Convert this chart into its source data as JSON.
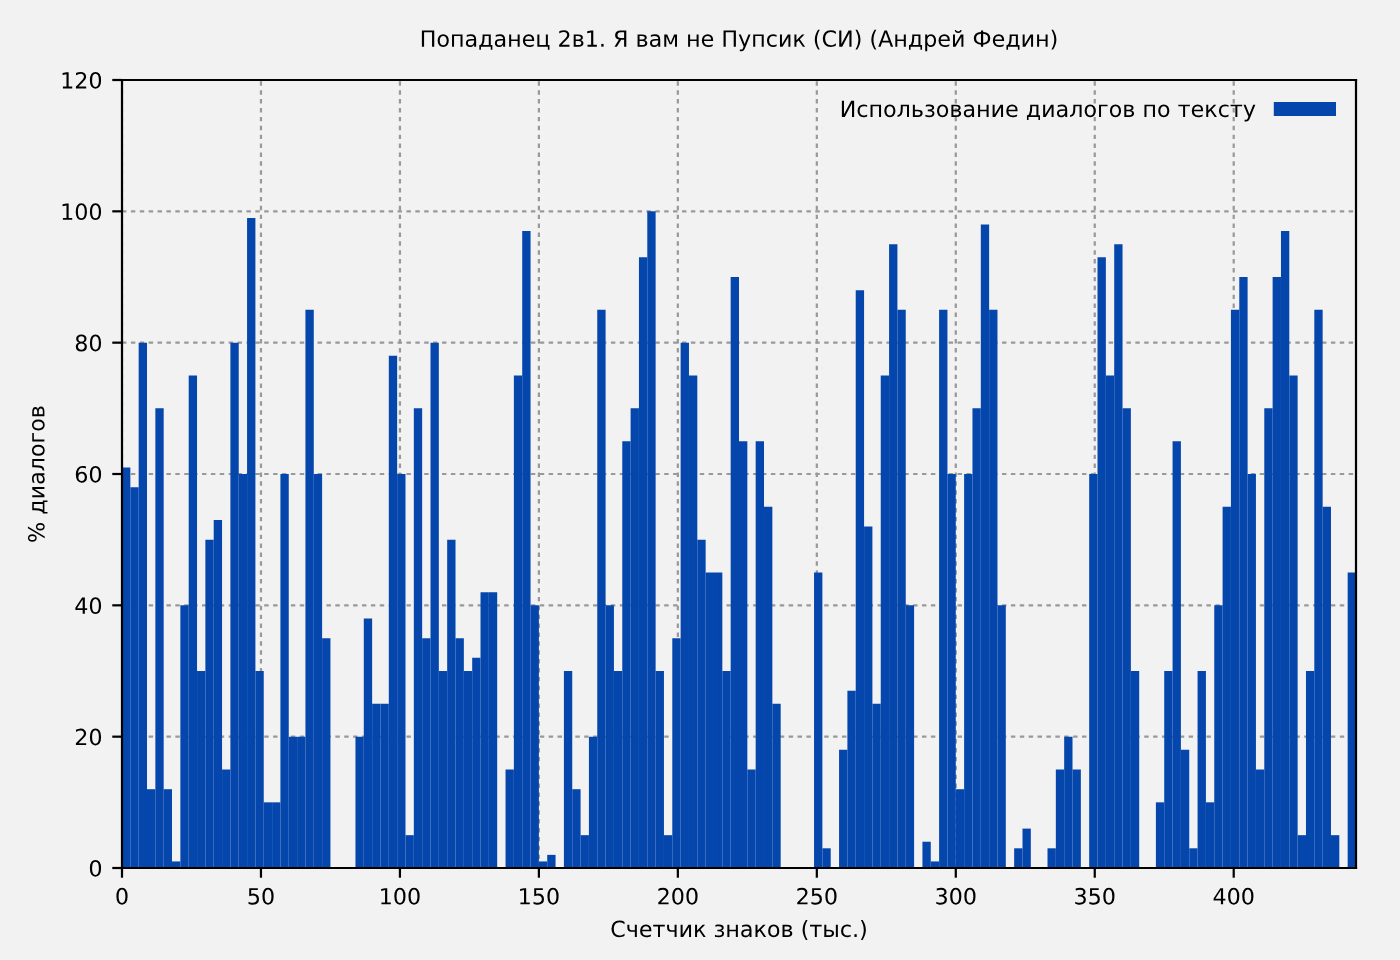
{
  "chart_data": {
    "type": "bar",
    "title": "Попаданец 2в1. Я вам не Пупсик (СИ) (Андрей Федин)",
    "xlabel": "Счетчик знаков (тыс.)",
    "ylabel": "% диалогов",
    "x": [
      0,
      3,
      6,
      9,
      12,
      15,
      18,
      21,
      24,
      27,
      30,
      33,
      36,
      39,
      42,
      45,
      48,
      51,
      54,
      57,
      60,
      63,
      66,
      69,
      72,
      75,
      78,
      81,
      84,
      87,
      90,
      93,
      96,
      99,
      102,
      105,
      108,
      111,
      114,
      117,
      120,
      123,
      126,
      129,
      132,
      135,
      138,
      141,
      144,
      147,
      150,
      153,
      156,
      159,
      162,
      165,
      168,
      171,
      174,
      177,
      180,
      183,
      186,
      189,
      192,
      195,
      198,
      201,
      204,
      207,
      210,
      213,
      216,
      219,
      222,
      225,
      228,
      231,
      234,
      237,
      240,
      243,
      246,
      249,
      252,
      255,
      258,
      261,
      264,
      267,
      270,
      273,
      276,
      279,
      282,
      285,
      288,
      291,
      294,
      297,
      300,
      303,
      306,
      309,
      312,
      315,
      318,
      321,
      324,
      327,
      330,
      333,
      336,
      339,
      342,
      345,
      348,
      351,
      354,
      357,
      360,
      363,
      366,
      369,
      372,
      375,
      378,
      381,
      384,
      387,
      390,
      393,
      396,
      399,
      402,
      405,
      408,
      411,
      414,
      417,
      420,
      423,
      426,
      429,
      432,
      435,
      438,
      441
    ],
    "series": [
      {
        "name": "Использование диалогов по тексту",
        "color": "#0546ad",
        "values": [
          61,
          58,
          80,
          12,
          70,
          12,
          1,
          40,
          75,
          30,
          50,
          53,
          15,
          80,
          60,
          99,
          30,
          10,
          10,
          60,
          20,
          20,
          85,
          60,
          35,
          0,
          0,
          0,
          20,
          38,
          25,
          25,
          78,
          60,
          5,
          70,
          35,
          80,
          30,
          50,
          35,
          30,
          32,
          42,
          42,
          0,
          15,
          75,
          97,
          40,
          1,
          2,
          0,
          30,
          12,
          5,
          20,
          85,
          40,
          30,
          65,
          70,
          93,
          100,
          30,
          5,
          35,
          80,
          75,
          50,
          45,
          45,
          30,
          90,
          65,
          15,
          65,
          55,
          25,
          0,
          0,
          0,
          0,
          45,
          3,
          0,
          18,
          27,
          88,
          52,
          25,
          75,
          95,
          85,
          40,
          0,
          4,
          1,
          85,
          60,
          12,
          60,
          70,
          98,
          85,
          40,
          0,
          3,
          6,
          0,
          0,
          3,
          15,
          20,
          15,
          0,
          60,
          93,
          75,
          95,
          70,
          30,
          0,
          0,
          10,
          30,
          65,
          18,
          3,
          30,
          10,
          40,
          55,
          85,
          90,
          60,
          15,
          70,
          90,
          97,
          75,
          5,
          30,
          85,
          55,
          5,
          0,
          45
        ]
      }
    ],
    "xlim": [
      0,
      444
    ],
    "xticks": [
      0,
      50,
      100,
      150,
      200,
      250,
      300,
      350,
      400
    ],
    "ylim": [
      0,
      120
    ],
    "yticks": [
      0,
      20,
      40,
      60,
      80,
      100,
      120
    ],
    "grid": true,
    "legend": "top right"
  }
}
